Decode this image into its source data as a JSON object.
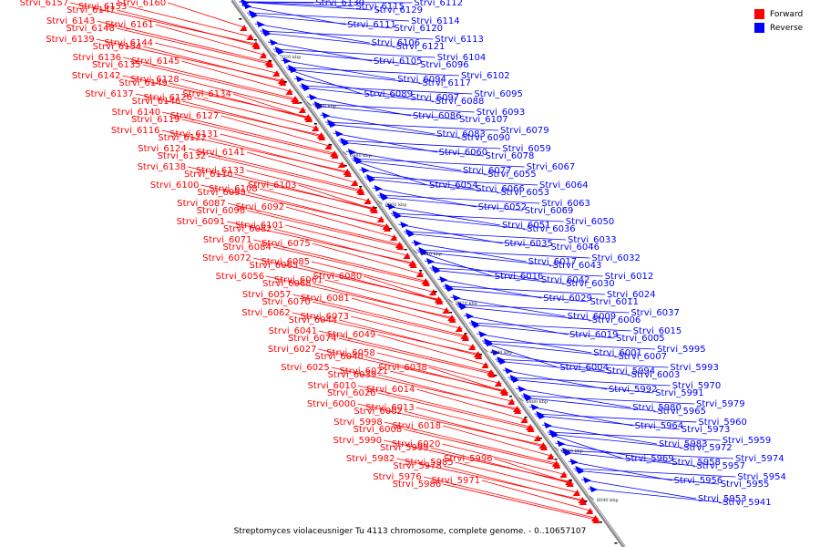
{
  "caption": "Streptomyces violaceusniger Tu 4113 chromosome, complete genome. - 0..10657107",
  "legend": [
    {
      "label": "Forward",
      "color": "#ff0000"
    },
    {
      "label": "Reverse",
      "color": "#0000ff"
    }
  ],
  "colors": {
    "forward": "#ff0000",
    "reverse": "#0000ff",
    "axis": "#888888"
  },
  "ticks": [
    "7020 kbp",
    "7000 kbp",
    "6980 kbp",
    "6960 kbp",
    "6940 kbp",
    "6920 kbp",
    "6900 kbp",
    "6880 kbp",
    "6860 kbp",
    "6840 kbp"
  ],
  "forward_genes": [
    "Strvi_6160",
    "Strvi_6153",
    "Strvi_6147",
    "Strvi_6157",
    "Strvi_6161",
    "Strvi_6148",
    "Strvi_6143",
    "Strvi_6144",
    "Strvi_6154",
    "Strvi_6139",
    "Strvi_6145",
    "Strvi_6135",
    "Strvi_6136",
    "Strvi_6128",
    "Strvi_6149",
    "Strvi_6142",
    "Strvi_6134",
    "Strvi_6126",
    "Strvi_6146",
    "Strvi_6137",
    "Strvi_6127",
    "Strvi_6119",
    "Strvi_6140",
    "Strvi_6131",
    "Strvi_6122",
    "Strvi_6116",
    "Strvi_6141",
    "Strvi_6132",
    "Strvi_6124",
    "Strvi_6133",
    "Strvi_6110",
    "Strvi_6138",
    "Strvi_6103",
    "Strvi_6108",
    "Strvi_6099",
    "Strvi_6100",
    "Strvi_6092",
    "Strvi_6098",
    "Strvi_6087",
    "Strvi_6101",
    "Strvi_6082",
    "Strvi_6091",
    "Strvi_6075",
    "Strvi_6084",
    "Strvi_6071",
    "Strvi_6085",
    "Strvi_6065",
    "Strvi_6072",
    "Strvi_6080",
    "Strvi_6061",
    "Strvi_6068",
    "Strvi_6056",
    "Strvi_6081",
    "Strvi_6070",
    "Strvi_6057",
    "Strvi_6073",
    "Strvi_6044",
    "Strvi_6062",
    "Strvi_6049",
    "Strvi_6074",
    "Strvi_6041",
    "Strvi_6058",
    "Strvi_6040",
    "Strvi_6027",
    "Strvi_6038",
    "Strvi_6021",
    "Strvi_6039",
    "Strvi_6025",
    "Strvi_6014",
    "Strvi_6026",
    "Strvi_6010",
    "Strvi_6013",
    "Strvi_6002",
    "Strvi_6000",
    "Strvi_6018",
    "Strvi_6008",
    "Strvi_5998",
    "Strvi_6020",
    "Strvi_5999",
    "Strvi_5990",
    "Strvi_5996",
    "Strvi_5985",
    "Strvi_5978",
    "Strvi_5982",
    "Strvi_5971",
    "Strvi_5986",
    "Strvi_5976"
  ],
  "reverse_genes": [
    "Strvi_6130",
    "Strvi_6115",
    "Strvi_6129",
    "Strvi_6112",
    "Strvi_6111",
    "Strvi_6120",
    "Strvi_6114",
    "Strvi_6106",
    "Strvi_6121",
    "Strvi_6113",
    "Strvi_6105",
    "Strvi_6096",
    "Strvi_6104",
    "Strvi_6094",
    "Strvi_6117",
    "Strvi_6102",
    "Strvi_6089",
    "Strvi_6097",
    "Strvi_6088",
    "Strvi_6095",
    "Strvi_6086",
    "Strvi_6107",
    "Strvi_6093",
    "Strvi_6083",
    "Strvi_6090",
    "Strvi_6079",
    "Strvi_6060",
    "Strvi_6078",
    "Strvi_6059",
    "Strvi_6077",
    "Strvi_6055",
    "Strvi_6067",
    "Strvi_6054",
    "Strvi_6066",
    "Strvi_6053",
    "Strvi_6064",
    "Strvi_6052",
    "Strvi_6069",
    "Strvi_6063",
    "Strvi_6051",
    "Strvi_6036",
    "Strvi_6050",
    "Strvi_6035",
    "Strvi_6046",
    "Strvi_6033",
    "Strvi_6017",
    "Strvi_6043",
    "Strvi_6032",
    "Strvi_6016",
    "Strvi_6042",
    "Strvi_6030",
    "Strvi_6012",
    "Strvi_6029",
    "Strvi_6011",
    "Strvi_6024",
    "Strvi_6009",
    "Strvi_6006",
    "Strvi_6037",
    "Strvi_6019",
    "Strvi_6005",
    "Strvi_6015",
    "Strvi_6001",
    "Strvi_6007",
    "Strvi_5995",
    "Strvi_6004",
    "Strvi_5994",
    "Strvi_6003",
    "Strvi_5993",
    "Strvi_5992",
    "Strvi_5991",
    "Strvi_5970",
    "Strvi_5980",
    "Strvi_5965",
    "Strvi_5979",
    "Strvi_5964",
    "Strvi_5973",
    "Strvi_5960",
    "Strvi_5983",
    "Strvi_5972",
    "Strvi_5959",
    "Strvi_5969",
    "Strvi_5958",
    "Strvi_5957",
    "Strvi_5974",
    "Strvi_5956",
    "Strvi_5955",
    "Strvi_5954",
    "Strvi_5953",
    "Strvi_5941"
  ]
}
